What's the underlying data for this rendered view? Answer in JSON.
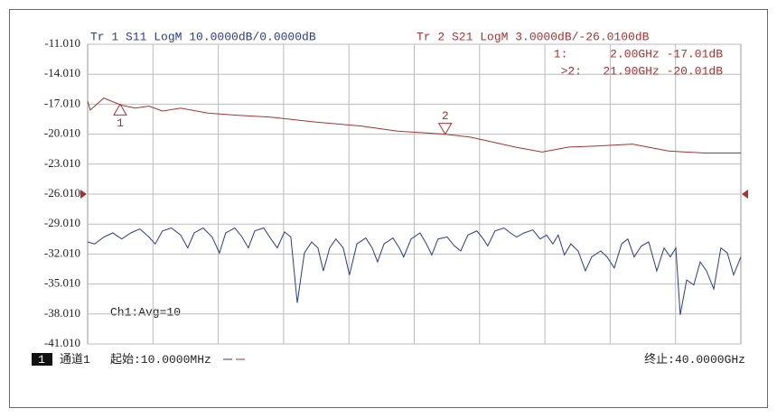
{
  "chart_data": {
    "type": "line",
    "trace1_header": "Tr 1  S11 LogM 10.0000dB/0.0000dB",
    "trace2_header": "Tr 2  S21 LogM 3.0000dB/-26.0100dB",
    "annotation": "Ch1:Avg=10",
    "channel_number": "1",
    "channel_label": "通道1",
    "start_label": "起始:10.0000MHz",
    "stop_label": "终止:40.0000GHz",
    "xlim": [
      0.01,
      40
    ],
    "ylim": [
      -41.01,
      -11.01
    ],
    "yticks": [
      {
        "value": -11.01,
        "label": "-11.010"
      },
      {
        "value": -14.01,
        "label": "-14.010"
      },
      {
        "value": -17.01,
        "label": "-17.010"
      },
      {
        "value": -20.01,
        "label": "-20.010"
      },
      {
        "value": -23.01,
        "label": "-23.010"
      },
      {
        "value": -26.01,
        "label": "-26.010"
      },
      {
        "value": -29.01,
        "label": "-29.010"
      },
      {
        "value": -32.01,
        "label": "-32.010"
      },
      {
        "value": -35.01,
        "label": "-35.010"
      },
      {
        "value": -38.01,
        "label": "-38.010"
      },
      {
        "value": -41.01,
        "label": "-41.010"
      }
    ],
    "grid": true,
    "ref_level": -26.01,
    "series": [
      {
        "name": "S21",
        "color": "#a83232",
        "x": [
          0.01,
          0.17,
          1.0,
          2.05,
          2.93,
          3.76,
          4.59,
          5.7,
          7.36,
          9.02,
          11.23,
          13.99,
          16.76,
          18.98,
          21.8,
          23.4,
          24.79,
          26.17,
          27.83,
          29.48,
          31.15,
          33.36,
          35.57,
          37.79,
          40
        ],
        "values": [
          -16.7,
          -17.6,
          -16.4,
          -17.1,
          -17.4,
          -17.2,
          -17.7,
          -17.4,
          -17.9,
          -18.1,
          -18.3,
          -18.8,
          -19.2,
          -19.7,
          -20.0,
          -20.3,
          -20.8,
          -21.3,
          -21.8,
          -21.3,
          -21.2,
          -21.0,
          -21.7,
          -21.9,
          -21.9
        ]
      },
      {
        "name": "S11",
        "color": "#2b3a8f",
        "x": [
          0.01,
          0.44,
          1.0,
          1.55,
          2.1,
          2.65,
          3.21,
          3.76,
          4.15,
          4.59,
          5.14,
          5.7,
          6.14,
          6.53,
          7.08,
          7.63,
          8.08,
          8.46,
          9.02,
          9.46,
          9.85,
          10.24,
          10.79,
          11.23,
          11.62,
          12.06,
          12.45,
          12.84,
          13.28,
          13.72,
          14.11,
          14.44,
          14.83,
          15.21,
          15.66,
          16.04,
          16.49,
          17.04,
          17.43,
          17.76,
          18.15,
          18.7,
          19.09,
          19.36,
          19.81,
          20.36,
          20.75,
          21.08,
          21.46,
          22.02,
          22.46,
          22.85,
          23.29,
          23.84,
          24.23,
          24.5,
          24.95,
          25.5,
          25.89,
          26.27,
          26.72,
          27.27,
          27.71,
          28.1,
          28.49,
          28.82,
          29.2,
          29.59,
          30.04,
          30.48,
          30.87,
          31.42,
          31.81,
          32.25,
          32.7,
          33.08,
          33.47,
          33.91,
          34.36,
          34.85,
          35.3,
          35.68,
          36.02,
          36.29,
          36.68,
          37.12,
          37.51,
          37.9,
          38.34,
          38.78,
          39.17,
          39.56,
          40
        ],
        "values": [
          -30.8,
          -31.0,
          -30.3,
          -29.9,
          -30.5,
          -29.9,
          -29.5,
          -30.3,
          -31.0,
          -29.7,
          -29.4,
          -30.1,
          -31.4,
          -29.9,
          -29.4,
          -30.3,
          -31.9,
          -29.9,
          -29.4,
          -30.3,
          -31.4,
          -29.7,
          -29.4,
          -30.5,
          -31.4,
          -29.8,
          -30.3,
          -36.9,
          -31.9,
          -30.8,
          -31.4,
          -33.7,
          -31.4,
          -30.5,
          -31.4,
          -34.1,
          -31.0,
          -30.4,
          -31.4,
          -32.8,
          -31.0,
          -30.4,
          -31.4,
          -32.3,
          -30.5,
          -29.9,
          -31.0,
          -32.1,
          -30.5,
          -30.3,
          -31.2,
          -31.7,
          -30.1,
          -29.7,
          -30.5,
          -31.2,
          -29.7,
          -29.4,
          -29.9,
          -30.3,
          -29.9,
          -29.6,
          -30.5,
          -30.1,
          -31.0,
          -30.1,
          -32.1,
          -31.0,
          -31.7,
          -33.7,
          -32.3,
          -31.7,
          -32.3,
          -33.4,
          -31.0,
          -30.5,
          -32.3,
          -31.2,
          -30.8,
          -33.7,
          -31.4,
          -32.3,
          -31.4,
          -38.1,
          -34.6,
          -35.1,
          -32.8,
          -33.7,
          -35.5,
          -31.4,
          -31.9,
          -34.1,
          -32.3
        ]
      }
    ],
    "markers": [
      {
        "name": "1",
        "x": 2.0,
        "y": -17.01,
        "readout": "1:      2.00GHz -17.01dB"
      },
      {
        "name": "2",
        "x": 21.9,
        "y": -20.01,
        "readout": ">2:   21.90GHz -20.01dB"
      }
    ]
  }
}
